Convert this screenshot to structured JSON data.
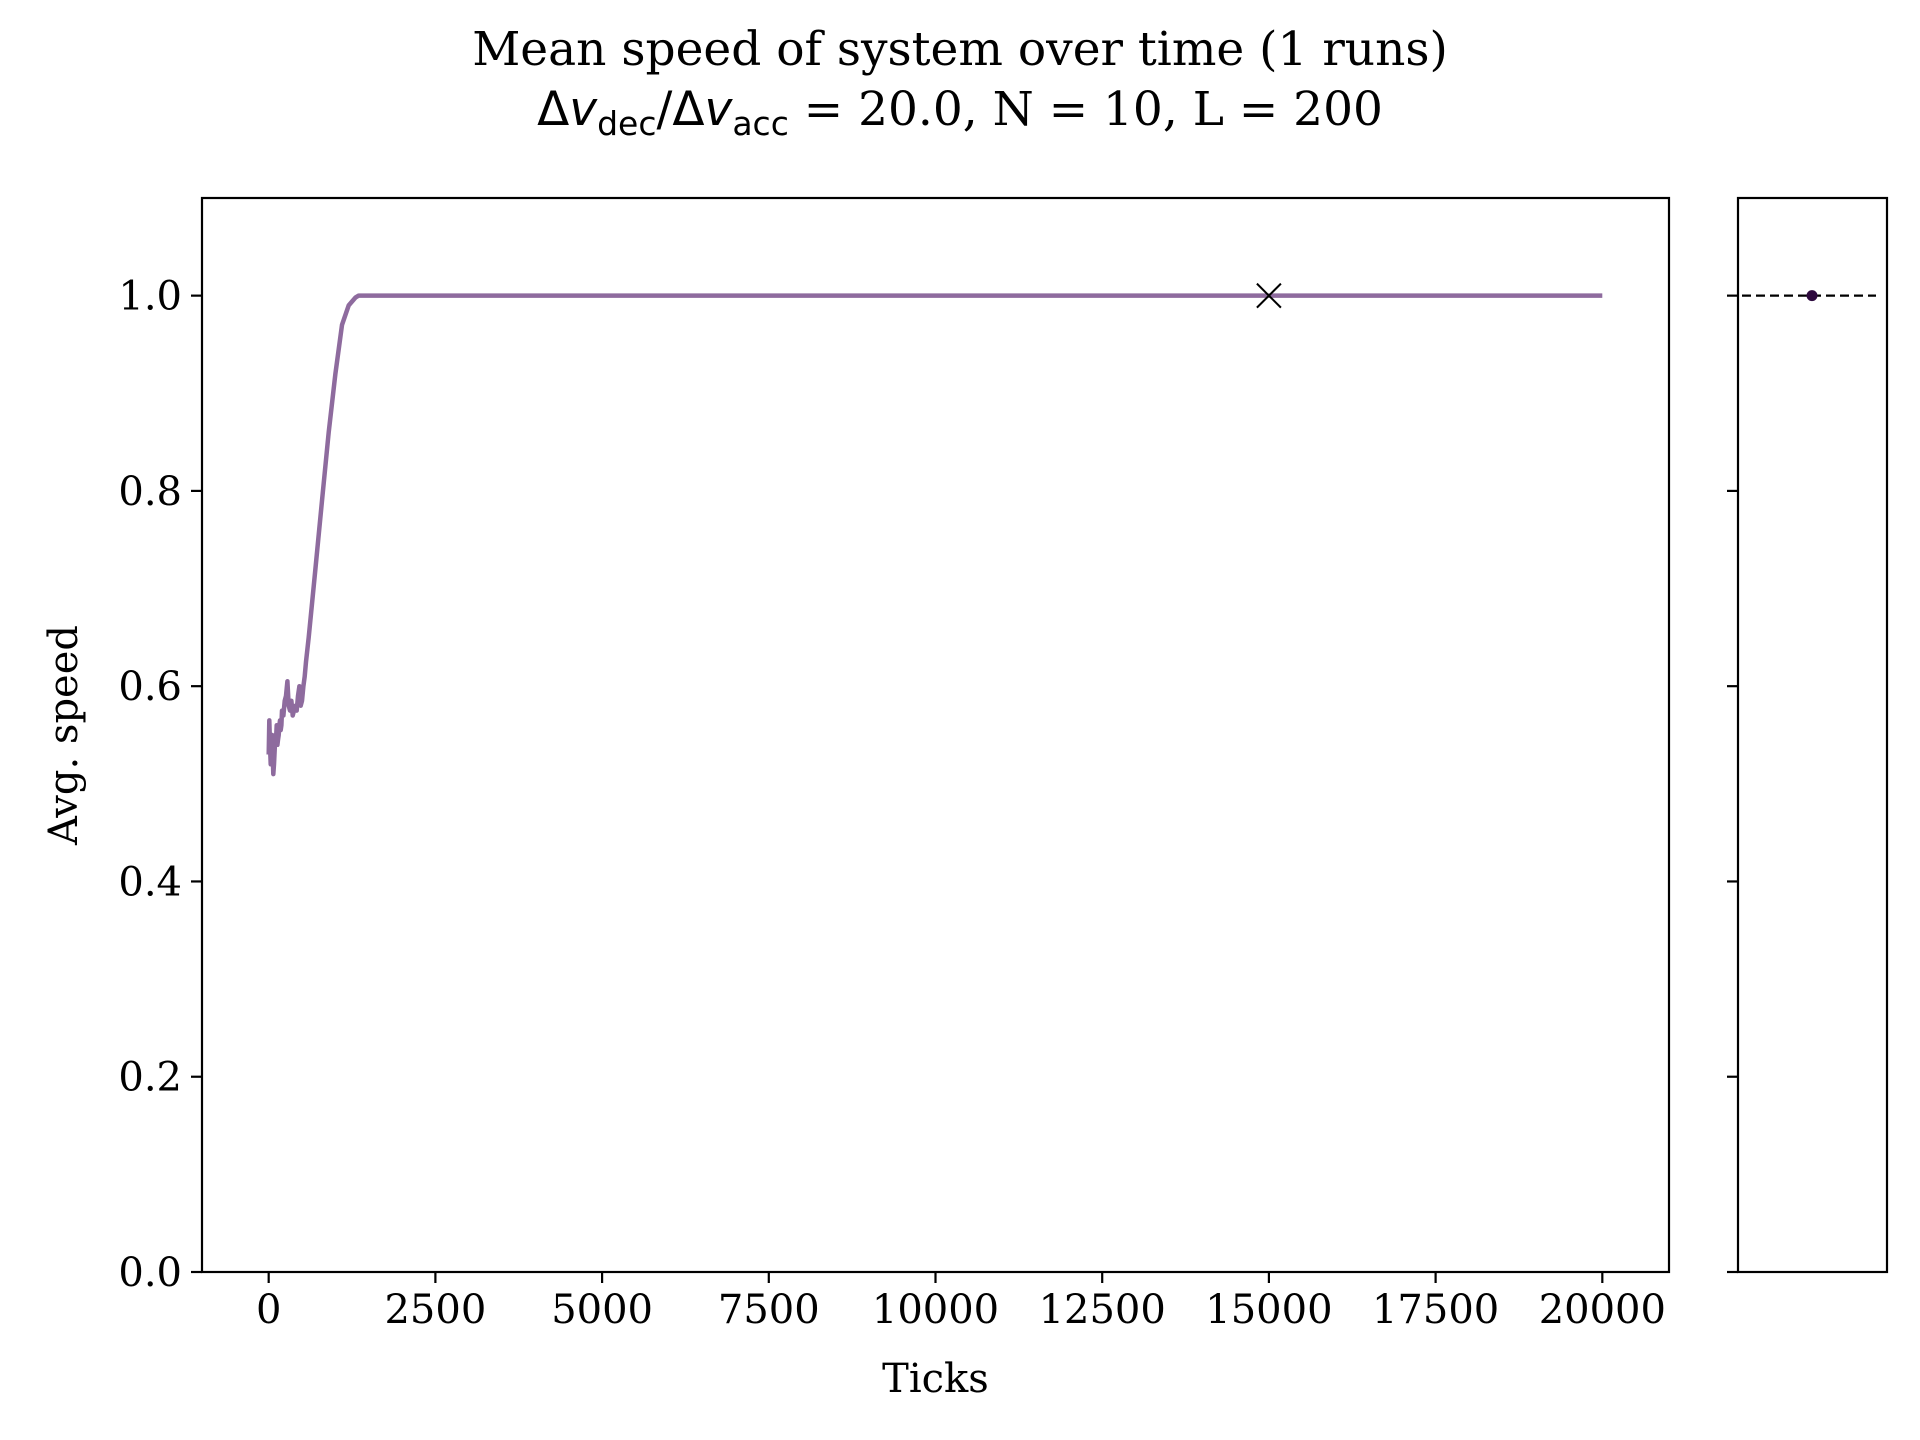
{
  "title": {
    "line1": "Mean speed of system over time (1 runs)",
    "delta": "Δ",
    "v": "v",
    "sub_dec": "dec",
    "slash": "/",
    "sub_acc": "acc",
    "params": " = 20.0, N = 10, L = 200"
  },
  "chart_data": [
    {
      "type": "line",
      "title": "Mean speed of system over time (1 runs) Δv_dec/Δv_acc = 20.0, N = 10, L = 200",
      "xlabel": "Ticks",
      "ylabel": "Avg. speed",
      "xlim": [
        -1000,
        21000
      ],
      "ylim": [
        0.0,
        1.1
      ],
      "xticks": [
        0,
        2500,
        5000,
        7500,
        10000,
        12500,
        15000,
        17500,
        20000
      ],
      "xtick_labels": [
        "0",
        "2500",
        "5000",
        "7500",
        "10000",
        "12500",
        "15000",
        "17500",
        "20000"
      ],
      "yticks": [
        0.0,
        0.2,
        0.4,
        0.6,
        0.8,
        1.0
      ],
      "ytick_labels": [
        "0.0",
        "0.2",
        "0.4",
        "0.6",
        "0.8",
        "1.0"
      ],
      "grid": false,
      "series": [
        {
          "color": "#8e6b9e",
          "x": [
            0,
            10,
            20,
            30,
            40,
            50,
            60,
            70,
            80,
            90,
            100,
            110,
            120,
            130,
            140,
            150,
            160,
            170,
            180,
            190,
            200,
            220,
            240,
            260,
            280,
            300,
            320,
            340,
            360,
            380,
            400,
            420,
            440,
            460,
            480,
            500,
            520,
            540,
            560,
            600,
            700,
            800,
            900,
            1000,
            1100,
            1200,
            1300,
            1350,
            1400,
            1450,
            1500,
            2000,
            5000,
            10000,
            15000,
            20000
          ],
          "y": [
            0.53,
            0.565,
            0.54,
            0.52,
            0.535,
            0.55,
            0.53,
            0.51,
            0.52,
            0.535,
            0.55,
            0.545,
            0.56,
            0.54,
            0.545,
            0.55,
            0.56,
            0.565,
            0.555,
            0.56,
            0.575,
            0.57,
            0.585,
            0.59,
            0.605,
            0.58,
            0.575,
            0.585,
            0.57,
            0.575,
            0.58,
            0.575,
            0.59,
            0.6,
            0.58,
            0.585,
            0.6,
            0.61,
            0.625,
            0.65,
            0.72,
            0.79,
            0.86,
            0.92,
            0.97,
            0.99,
            0.998,
            1.0,
            1.0,
            1.0,
            1.0,
            1.0,
            1.0,
            1.0,
            1.0,
            1.0
          ]
        }
      ],
      "markers": [
        {
          "shape": "x",
          "x": 15000,
          "y": 1.0,
          "color": "#000000"
        }
      ]
    },
    {
      "type": "scatter",
      "ylim": [
        0.0,
        1.1
      ],
      "yticks": [
        0.0,
        0.2,
        0.4,
        0.6,
        0.8,
        1.0
      ],
      "ytick_labels_visible": false,
      "xticks_visible": false,
      "points": [
        {
          "y": 1.0,
          "color": "#2e0a3e"
        }
      ],
      "hline": {
        "y": 1.0,
        "style": "dashed",
        "color": "#000000"
      }
    }
  ]
}
